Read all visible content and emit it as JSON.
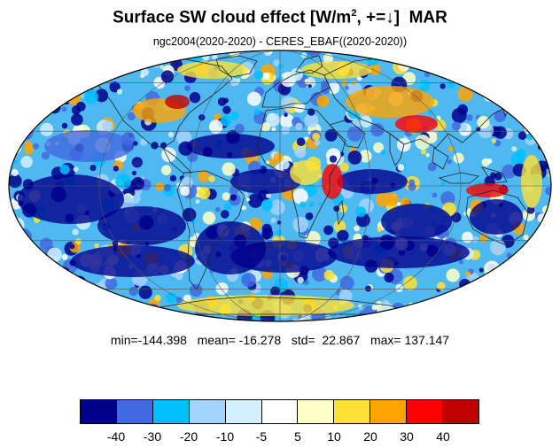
{
  "title": {
    "main": "Surface SW cloud effect [W/m",
    "sup": "2",
    "after": ", +=↓]",
    "month": "MAR"
  },
  "subtitle": "ngc2004(2020-2020) - CERES_EBAF((2020-2020))",
  "stats": {
    "text": "min=-144.398   mean= -16.278   std=  22.867   max= 137.147",
    "min": -144.398,
    "mean": -16.278,
    "std": 22.867,
    "max": 137.147
  },
  "colorbar": {
    "colors": [
      "#00008b",
      "#4169e1",
      "#00bfff",
      "#a3d3ff",
      "#d2f0ff",
      "#ffffff",
      "#ffffc8",
      "#ffe135",
      "#ffa500",
      "#ff0000",
      "#c00000"
    ],
    "labels": [
      "-40",
      "-30",
      "-20",
      "-10",
      "-5",
      "5",
      "10",
      "20",
      "30",
      "40"
    ]
  },
  "map": {
    "projection": "Mollweide",
    "grid_lat": [
      -60,
      -30,
      0,
      30,
      60
    ],
    "grid_lon": [
      -120,
      -60,
      0,
      60,
      120
    ]
  }
}
